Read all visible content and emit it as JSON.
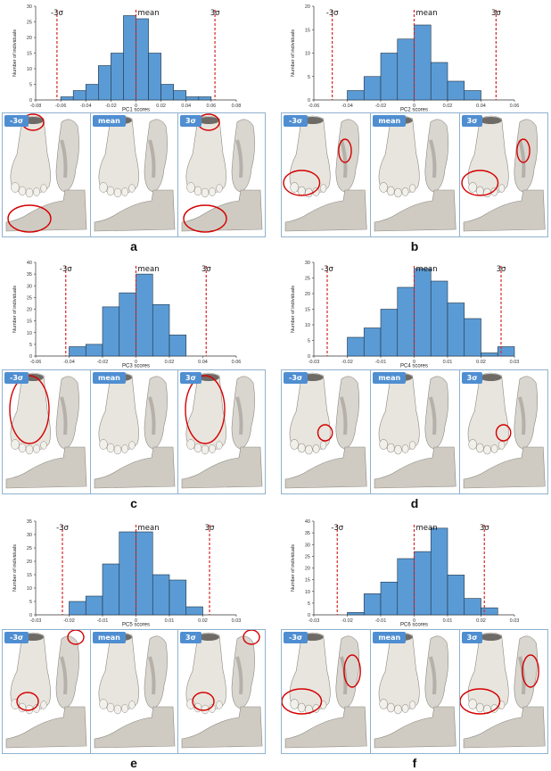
{
  "chart_data": [
    {
      "type": "bar",
      "panel": "a",
      "xlabel": "PC1 scores",
      "ylabel": "Number of individuals",
      "ylim": [
        0,
        30
      ],
      "yticks": [
        0,
        5,
        10,
        15,
        20,
        25,
        30
      ],
      "xlim": [
        -0.08,
        0.08
      ],
      "xticks": [
        "-0.08",
        "-0.06",
        "-0.04",
        "-0.02",
        "0",
        "0.02",
        "0.04",
        "0.06",
        "0.08"
      ],
      "bin_start": -0.06,
      "bin_width": 0.01,
      "values": [
        1,
        3,
        5,
        11,
        15,
        27,
        26,
        15,
        5,
        3,
        1,
        1
      ],
      "lines": [
        {
          "label": "-3σ",
          "x": -0.063
        },
        {
          "label": "mean",
          "x": 0
        },
        {
          "label": "3σ",
          "x": 0.063
        }
      ]
    },
    {
      "type": "bar",
      "panel": "b",
      "xlabel": "PC2 scores",
      "ylabel": "Number of individuals",
      "ylim": [
        0,
        20
      ],
      "yticks": [
        0,
        5,
        10,
        15,
        20
      ],
      "xlim": [
        -0.06,
        0.06
      ],
      "xticks": [
        "-0.06",
        "-0.04",
        "-0.02",
        "0",
        "0.02",
        "0.04",
        "0.06"
      ],
      "bin_start": -0.04,
      "bin_width": 0.01,
      "values": [
        2,
        5,
        10,
        13,
        16,
        8,
        4,
        2
      ],
      "lines": [
        {
          "label": "-3σ",
          "x": -0.049
        },
        {
          "label": "mean",
          "x": 0
        },
        {
          "label": "3σ",
          "x": 0.049
        }
      ]
    },
    {
      "type": "bar",
      "panel": "c",
      "xlabel": "PC3 scores",
      "ylabel": "Number of individuals",
      "ylim": [
        0,
        40
      ],
      "yticks": [
        0,
        5,
        10,
        15,
        20,
        25,
        30,
        35,
        40
      ],
      "xlim": [
        -0.06,
        0.06
      ],
      "xticks": [
        "-0.06",
        "-0.04",
        "-0.02",
        "0",
        "0.02",
        "0.04",
        "0.06"
      ],
      "bin_start": -0.04,
      "bin_width": 0.01,
      "values": [
        4,
        5,
        21,
        27,
        35,
        22,
        9
      ],
      "lines": [
        {
          "label": "-3σ",
          "x": -0.042
        },
        {
          "label": "mean",
          "x": 0
        },
        {
          "label": "3σ",
          "x": 0.042
        }
      ]
    },
    {
      "type": "bar",
      "panel": "d",
      "xlabel": "PC4 scores",
      "ylabel": "Number of individuals",
      "ylim": [
        0,
        30
      ],
      "yticks": [
        0,
        5,
        10,
        15,
        20,
        25,
        30
      ],
      "xlim": [
        -0.03,
        0.03
      ],
      "xticks": [
        "-0.03",
        "-0.02",
        "-0.01",
        "0",
        "0.01",
        "0.02",
        "0.03"
      ],
      "bin_start": -0.02,
      "bin_width": 0.005,
      "values": [
        6,
        9,
        15,
        22,
        28,
        24,
        17,
        12,
        1,
        3
      ],
      "lines": [
        {
          "label": "-3σ",
          "x": -0.026
        },
        {
          "label": "mean",
          "x": 0
        },
        {
          "label": "3σ",
          "x": 0.026
        }
      ]
    },
    {
      "type": "bar",
      "panel": "e",
      "xlabel": "PC5 scores",
      "ylabel": "Number of individuals",
      "ylim": [
        0,
        35
      ],
      "yticks": [
        0,
        5,
        10,
        15,
        20,
        25,
        30,
        35
      ],
      "xlim": [
        -0.03,
        0.03
      ],
      "xticks": [
        "-0.03",
        "-0.02",
        "-0.01",
        "0",
        "0.01",
        "0.02",
        "0.03"
      ],
      "bin_start": -0.02,
      "bin_width": 0.005,
      "values": [
        5,
        7,
        19,
        31,
        31,
        15,
        13,
        3
      ],
      "lines": [
        {
          "label": "-3σ",
          "x": -0.022
        },
        {
          "label": "mean",
          "x": 0
        },
        {
          "label": "3σ",
          "x": 0.022
        }
      ]
    },
    {
      "type": "bar",
      "panel": "f",
      "xlabel": "PC6 scores",
      "ylabel": "Number of individuals",
      "ylim": [
        0,
        40
      ],
      "yticks": [
        0,
        5,
        10,
        15,
        20,
        25,
        30,
        35,
        40
      ],
      "xlim": [
        -0.03,
        0.03
      ],
      "xticks": [
        "-0.03",
        "-0.02",
        "-0.01",
        "0",
        "0.01",
        "0.02",
        "0.03"
      ],
      "bin_start": -0.02,
      "bin_width": 0.005,
      "values": [
        1,
        9,
        14,
        24,
        27,
        37,
        17,
        7,
        3
      ],
      "lines": [
        {
          "label": "-3σ",
          "x": -0.023
        },
        {
          "label": "mean",
          "x": 0
        },
        {
          "label": "3σ",
          "x": 0.021
        }
      ]
    }
  ],
  "colors": {
    "bar": "#5b9bd5",
    "bar_edge": "#1f3247",
    "sigma_line": "#d62728",
    "mean_line": "#d62728",
    "tag_bg": "#4f8ed1",
    "panel_border": "#8fb2cf",
    "highlight_ellipse": "#d40000"
  },
  "panels": [
    {
      "letter": "a",
      "tags": [
        "-3σ",
        "mean",
        "3σ"
      ],
      "circles": [
        [
          "on top of foot",
          "on side profile"
        ],
        [],
        [
          "on top of foot",
          "on side profile"
        ]
      ]
    },
    {
      "letter": "b",
      "tags": [
        "-3σ",
        "mean",
        "3σ"
      ],
      "circles": [
        [
          "on toes",
          "on sole arch"
        ],
        [],
        [
          "on toes",
          "on sole arch"
        ]
      ]
    },
    {
      "letter": "c",
      "tags": [
        "-3σ",
        "mean",
        "3σ"
      ],
      "circles": [
        [
          "around whole foot"
        ],
        [],
        [
          "around whole foot"
        ]
      ]
    },
    {
      "letter": "d",
      "tags": [
        "-3σ",
        "mean",
        "3σ"
      ],
      "circles": [
        [
          "on small toe"
        ],
        [],
        [
          "on small toe"
        ]
      ]
    },
    {
      "letter": "e",
      "tags": [
        "-3σ",
        "mean",
        "3σ"
      ],
      "circles": [
        [
          "on toes",
          "on sole heel"
        ],
        [],
        [
          "on toes",
          "on sole heel"
        ]
      ]
    },
    {
      "letter": "f",
      "tags": [
        "-3σ",
        "mean",
        "3σ"
      ],
      "circles": [
        [
          "on toes",
          "on sole"
        ],
        [],
        [
          "on toes",
          "on sole"
        ]
      ]
    }
  ]
}
